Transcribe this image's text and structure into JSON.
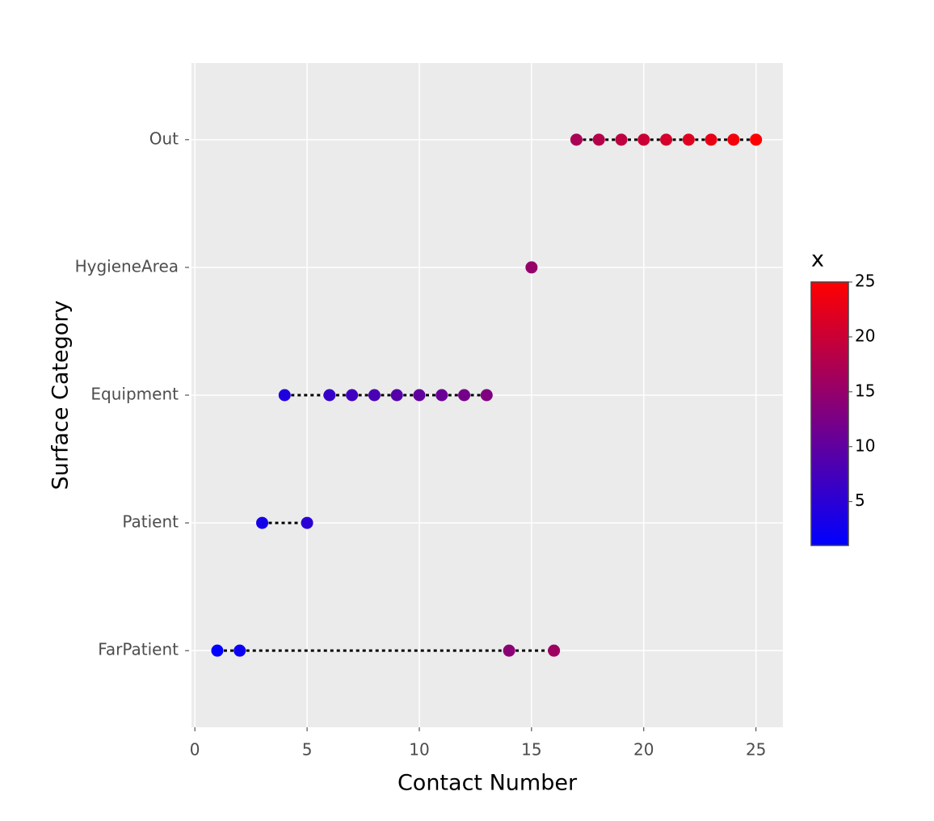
{
  "chart_data": {
    "type": "scatter",
    "x_label": "Contact Number",
    "y_label": "Surface Category",
    "y_categories": [
      "FarPatient",
      "Patient",
      "Equipment",
      "HygieneArea",
      "Out"
    ],
    "x": [
      1,
      2,
      3,
      4,
      5,
      6,
      7,
      8,
      9,
      10,
      11,
      12,
      13,
      14,
      15,
      16,
      17,
      18,
      19,
      20,
      21,
      22,
      23,
      24,
      25
    ],
    "y": [
      "FarPatient",
      "FarPatient",
      "Patient",
      "Equipment",
      "Patient",
      "Equipment",
      "Equipment",
      "Equipment",
      "Equipment",
      "Equipment",
      "Equipment",
      "Equipment",
      "Equipment",
      "FarPatient",
      "HygieneArea",
      "FarPatient",
      "Out",
      "Out",
      "Out",
      "Out",
      "Out",
      "Out",
      "Out",
      "Out",
      "Out"
    ],
    "xlim": [
      -0.15,
      26.2
    ],
    "xticks": [
      0,
      5,
      10,
      15,
      20,
      25
    ],
    "grid": true,
    "line_style": "dotted",
    "colorbar": {
      "title": "x",
      "colors": [
        "#0000ff",
        "#ff0000"
      ],
      "lim": [
        1,
        25
      ],
      "ticks": [
        5,
        10,
        15,
        20,
        25
      ]
    }
  }
}
